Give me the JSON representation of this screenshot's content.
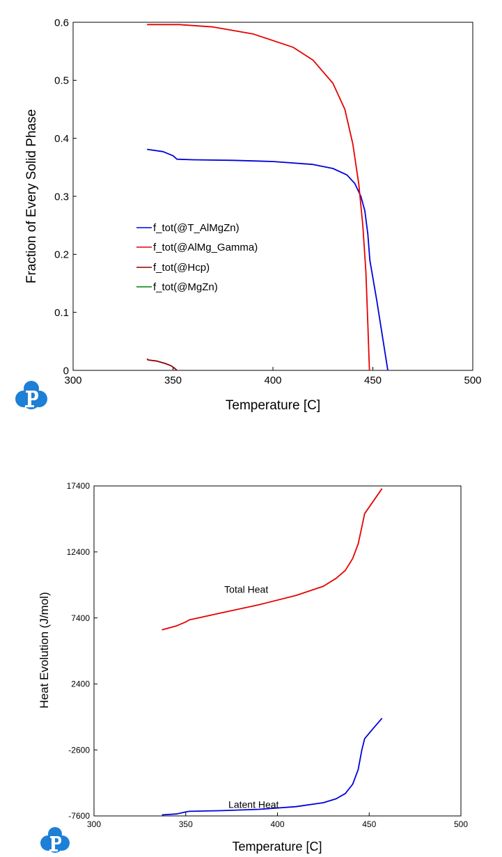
{
  "chart_data": [
    {
      "type": "line",
      "title": "",
      "xlabel": "Temperature [C]",
      "ylabel": "Fraction of Every Solid Phase",
      "xlim": [
        300,
        500
      ],
      "ylim": [
        0,
        0.6
      ],
      "xticks": [
        "300",
        "350",
        "400",
        "450",
        "500"
      ],
      "yticks": [
        "0",
        "0.1",
        "0.2",
        "0.3",
        "0.4",
        "0.5",
        "0.6"
      ],
      "legend_placement": "center-left",
      "grid": false,
      "series": [
        {
          "name": "f_tot(@T_AlMgZn)",
          "color": "#0000dd",
          "x": [
            337,
            345,
            350,
            352,
            360,
            380,
            400,
            420,
            430,
            437,
            441,
            444,
            446,
            447.5,
            448.5,
            452,
            457.5
          ],
          "y": [
            0.381,
            0.377,
            0.37,
            0.364,
            0.363,
            0.362,
            0.36,
            0.355,
            0.348,
            0.337,
            0.322,
            0.3,
            0.275,
            0.235,
            0.19,
            0.12,
            0.0
          ]
        },
        {
          "name": "f_tot(@AlMg_Gamma)",
          "color": "#e60000",
          "x": [
            337,
            350,
            353,
            370,
            390,
            410,
            420,
            430,
            436,
            440,
            443,
            445,
            446.5,
            447.5,
            448.3
          ],
          "y": [
            0.596,
            0.596,
            0.596,
            0.592,
            0.58,
            0.557,
            0.535,
            0.495,
            0.45,
            0.39,
            0.32,
            0.25,
            0.17,
            0.08,
            0.0
          ]
        },
        {
          "name": "f_tot(@Hcp)",
          "color": "#8b0000",
          "x": [
            337,
            337.5,
            342,
            346,
            349,
            351,
            352
          ],
          "y": [
            0.02,
            0.018,
            0.016,
            0.012,
            0.008,
            0.003,
            0.0
          ]
        },
        {
          "name": "f_tot(@MgZn)",
          "color": "#008000",
          "x": [],
          "y": []
        }
      ]
    },
    {
      "type": "line",
      "title": "",
      "xlabel": "Temperature [C]",
      "ylabel": "Heat Evolution (J/mol)",
      "xlim": [
        300,
        500
      ],
      "ylim": [
        -7600,
        17400
      ],
      "xticks": [
        "300",
        "350",
        "400",
        "450",
        "500"
      ],
      "yticks": [
        "-7600",
        "-2600",
        "2400",
        "7400",
        "12400",
        "17400"
      ],
      "grid": false,
      "annotations": [
        {
          "text": "Total Heat",
          "x": 383,
          "y": 9300
        },
        {
          "text": "Latent Heat",
          "x": 387,
          "y": -7000
        }
      ],
      "series": [
        {
          "name": "Total Heat",
          "color": "#e60000",
          "x": [
            337,
            345,
            350,
            352,
            370,
            390,
            410,
            425,
            432,
            437,
            441,
            444,
            446,
            447.5,
            452,
            457
          ],
          "y": [
            6500,
            6800,
            7100,
            7250,
            7800,
            8400,
            9100,
            9800,
            10400,
            11000,
            11900,
            13000,
            14300,
            15300,
            16200,
            17200
          ]
        },
        {
          "name": "Latent Heat",
          "color": "#0000dd",
          "x": [
            337,
            345,
            350,
            352,
            370,
            390,
            410,
            425,
            432,
            437,
            441,
            444,
            446,
            447.5,
            452,
            457
          ],
          "y": [
            -7520,
            -7450,
            -7300,
            -7250,
            -7200,
            -7100,
            -6900,
            -6600,
            -6300,
            -5900,
            -5200,
            -4100,
            -2600,
            -1750,
            -1000,
            -200
          ]
        }
      ]
    }
  ]
}
